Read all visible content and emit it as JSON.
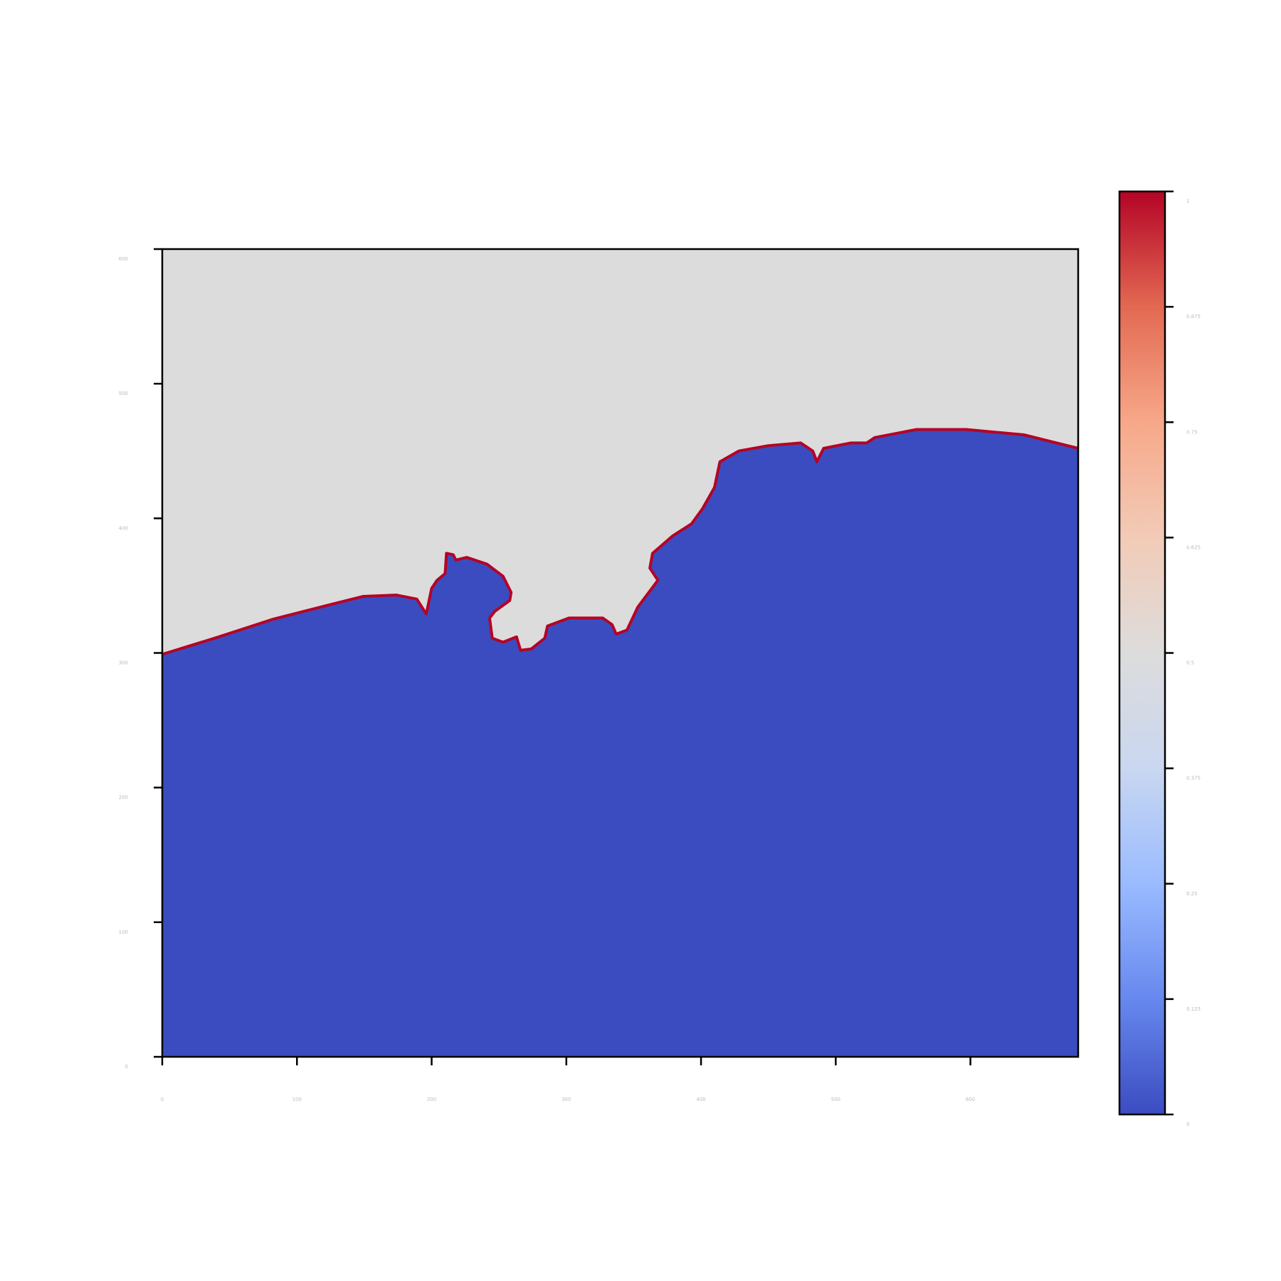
{
  "chart_data": {
    "type": "contour",
    "xlim": [
      0,
      680
    ],
    "ylim": [
      0,
      600
    ],
    "xticks": [
      0,
      100,
      200,
      300,
      400,
      500,
      600
    ],
    "yticks": [
      0,
      100,
      200,
      300,
      400,
      500,
      600
    ],
    "contour": {
      "color": "#b40426",
      "x": [
        0,
        39,
        82,
        125,
        149,
        174,
        189,
        196,
        200,
        204,
        210,
        211,
        216,
        218,
        226,
        241,
        253,
        259,
        258,
        247,
        243,
        245,
        253,
        263,
        266,
        274,
        284,
        286,
        302,
        327,
        334,
        337,
        345,
        353,
        368,
        362,
        364,
        379,
        393,
        401,
        410,
        414,
        428,
        450,
        474,
        483,
        486,
        491,
        511,
        523,
        529,
        560,
        597,
        640,
        680
      ],
      "y": [
        299,
        311,
        325,
        336,
        342,
        343,
        340,
        329,
        348,
        354,
        359,
        374,
        373,
        369,
        371,
        366,
        357,
        345,
        339,
        331,
        326,
        311,
        308,
        312,
        302,
        303,
        311,
        320,
        326,
        326,
        321,
        314,
        317,
        334,
        354,
        363,
        374,
        387,
        396,
        407,
        423,
        442,
        450,
        454,
        456,
        450,
        442,
        452,
        456,
        456,
        460,
        466,
        466,
        462,
        452
      ]
    },
    "region_colors": {
      "above": "#dddcdc",
      "below": "#3b4cc0"
    },
    "colorbar": {
      "colors": [
        "#3b4cc0",
        "#6788ee",
        "#9abbff",
        "#c9d7f0",
        "#dddcdc",
        "#f2cbb7",
        "#f7a889",
        "#e26952",
        "#b40426"
      ],
      "lim": [
        0,
        1
      ],
      "ticks": [
        0,
        0.125,
        0.25,
        0.375,
        0.5,
        0.625,
        0.75,
        0.875,
        1
      ]
    }
  }
}
